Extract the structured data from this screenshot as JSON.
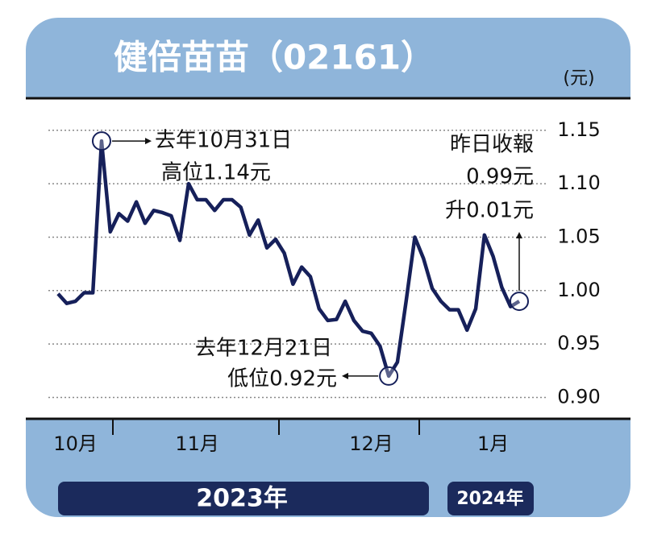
{
  "chart_data": {
    "type": "line",
    "title": "健倍苗苗（02161）",
    "unit": "(元)",
    "categories": [
      null,
      null,
      "10月",
      null,
      null,
      null,
      null,
      null,
      null,
      null,
      null,
      null,
      null,
      null,
      null,
      null,
      "11月",
      null,
      null,
      null,
      null,
      null,
      null,
      null,
      null,
      null,
      null,
      null,
      null,
      null,
      null,
      null,
      null,
      null,
      null,
      null,
      "12月",
      null,
      null,
      null,
      null,
      null,
      null,
      null,
      null,
      null,
      null,
      null,
      null,
      null,
      "1月",
      null,
      null,
      null
    ],
    "series": [
      {
        "name": "健倍苗苗",
        "color": "#16205a",
        "values": [
          0.997,
          0.988,
          0.99,
          0.998,
          0.998,
          1.14,
          1.055,
          1.072,
          1.065,
          1.083,
          1.063,
          1.075,
          1.073,
          1.07,
          1.047,
          1.1,
          1.085,
          1.085,
          1.075,
          1.085,
          1.085,
          1.078,
          1.052,
          1.066,
          1.04,
          1.048,
          1.035,
          1.006,
          1.022,
          1.013,
          0.983,
          0.972,
          0.973,
          0.99,
          0.972,
          0.962,
          0.96,
          0.948,
          0.92,
          0.933,
          0.99,
          1.05,
          1.03,
          1.002,
          0.99,
          0.982,
          0.982,
          0.963,
          0.983,
          1.052,
          1.032,
          1.003,
          0.985,
          0.99
        ]
      }
    ],
    "ylim": [
      0.88,
      1.18
    ],
    "yticks": [
      1.15,
      {
        "value": 1.1,
        "label": "1.10"
      },
      1.05,
      {
        "value": 1.0,
        "label": "1.00"
      },
      0.95,
      {
        "value": 0.9,
        "label": "0.90"
      }
    ],
    "grid": true,
    "year_labels": [
      "2023年",
      "2024年"
    ],
    "annotations": [
      {
        "text": [
          "去年10月31日",
          "高位1.14元"
        ],
        "index": 5
      },
      {
        "text": [
          "去年12月21日",
          "低位0.92元"
        ],
        "index": 38
      },
      {
        "text": [
          "昨日收報",
          "0.99元",
          "升0.01元"
        ],
        "index": 53
      }
    ]
  }
}
